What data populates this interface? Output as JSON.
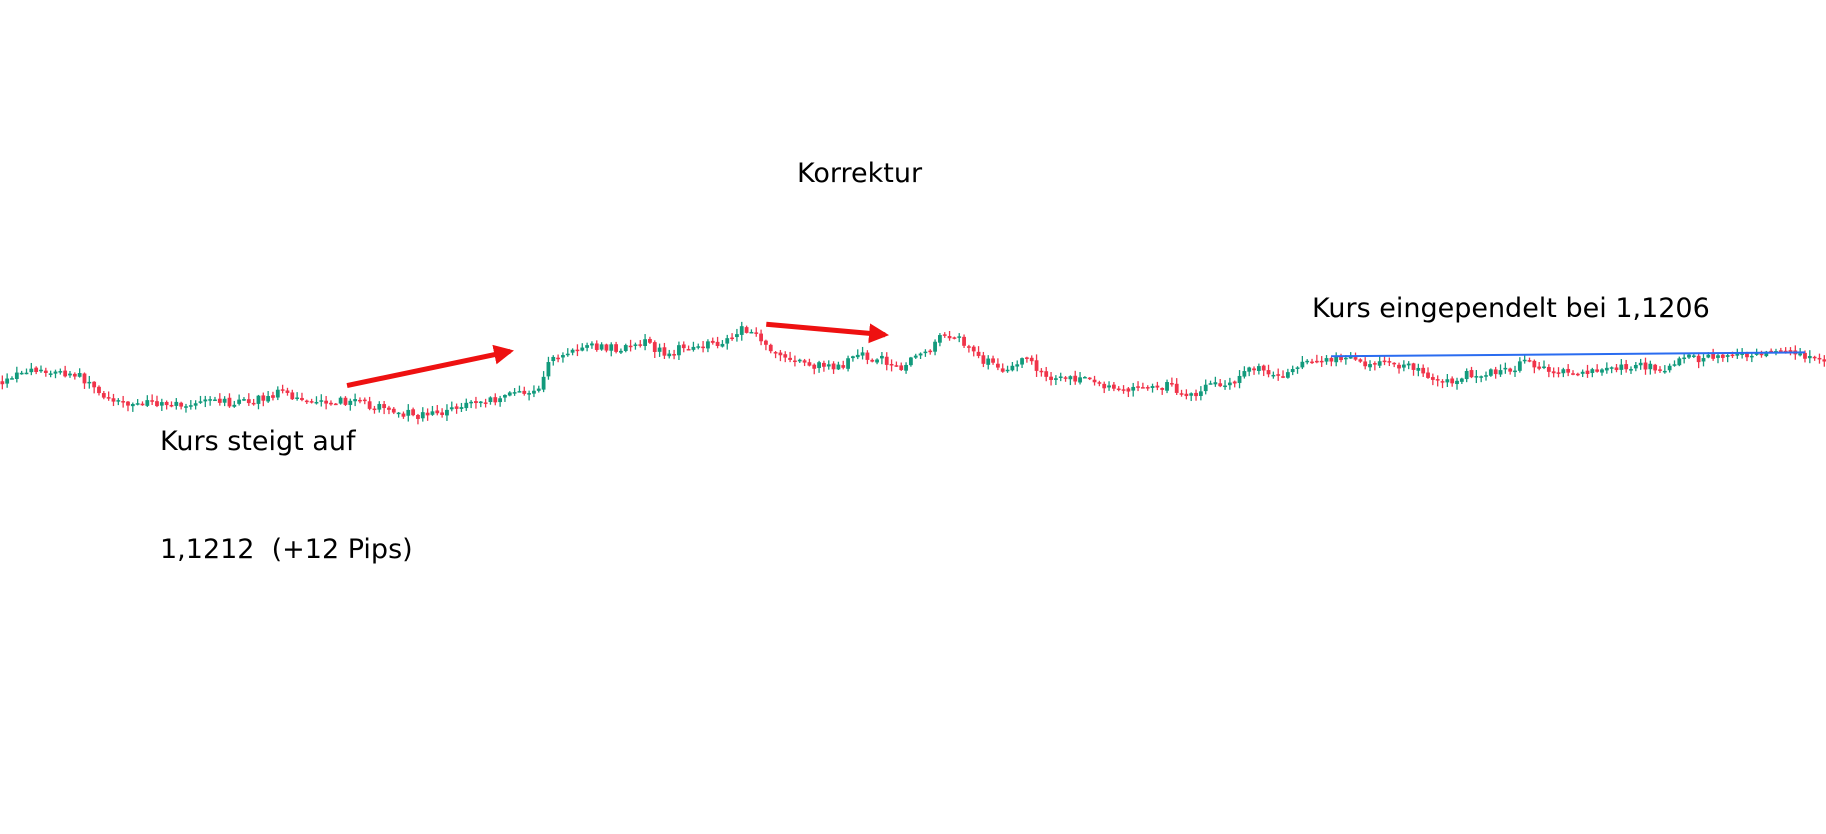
{
  "chart_data": {
    "type": "candlestick",
    "colors": {
      "up": "#129a7c",
      "down": "#f0344a",
      "arrow": "#ee1111",
      "level_line": "#2a6cf0"
    },
    "annotations": {
      "rise_label": [
        "Kurs steigt auf",
        "1,1212  (+12 Pips)"
      ],
      "correction_label": "Korrektur",
      "settled_label": "Kurs eingependelt bei 1,1206"
    },
    "price_path": [
      [
        0,
        1.1184
      ],
      [
        18,
        1.11945
      ],
      [
        65,
        1.1191
      ],
      [
        100,
        1.11635
      ],
      [
        145,
        1.1165
      ],
      [
        165,
        1.1162
      ],
      [
        175,
        1.1165
      ],
      [
        210,
        1.1165
      ],
      [
        240,
        1.11735
      ],
      [
        262,
        1.1168
      ],
      [
        300,
        1.1166
      ],
      [
        335,
        1.1158
      ],
      [
        360,
        1.11535
      ],
      [
        380,
        1.11555
      ],
      [
        395,
        1.1164
      ],
      [
        420,
        1.11665
      ],
      [
        440,
        1.11745
      ],
      [
        463,
        1.1177
      ],
      [
        472,
        1.1204
      ],
      [
        490,
        1.1212
      ],
      [
        510,
        1.1216
      ],
      [
        535,
        1.1214
      ],
      [
        555,
        1.1219
      ],
      [
        572,
        1.1208
      ],
      [
        590,
        1.1217
      ],
      [
        615,
        1.1219
      ],
      [
        628,
        1.1225
      ],
      [
        638,
        1.1234
      ],
      [
        655,
        1.1222
      ],
      [
        668,
        1.1208
      ],
      [
        693,
        1.11995
      ],
      [
        718,
        1.1196
      ],
      [
        738,
        1.1208
      ],
      [
        755,
        1.12045
      ],
      [
        775,
        1.11975
      ],
      [
        795,
        1.1212
      ],
      [
        813,
        1.1228
      ],
      [
        825,
        1.12225
      ],
      [
        845,
        1.1203
      ],
      [
        862,
        1.11955
      ],
      [
        880,
        1.1204
      ],
      [
        900,
        1.1188
      ],
      [
        925,
        1.11865
      ],
      [
        960,
        1.11775
      ],
      [
        985,
        1.11785
      ],
      [
        1005,
        1.11805
      ],
      [
        1022,
        1.1171
      ],
      [
        1040,
        1.1182
      ],
      [
        1058,
        1.1184
      ],
      [
        1075,
        1.1198
      ],
      [
        1100,
        1.1188
      ],
      [
        1120,
        1.11995
      ],
      [
        1143,
        1.12055
      ],
      [
        1170,
        1.12015
      ],
      [
        1215,
        1.1198
      ],
      [
        1238,
        1.11805
      ],
      [
        1260,
        1.11905
      ],
      [
        1290,
        1.1193
      ],
      [
        1310,
        1.1201
      ],
      [
        1335,
        1.1195
      ],
      [
        1360,
        1.11895
      ],
      [
        1380,
        1.1196
      ],
      [
        1410,
        1.1199
      ],
      [
        1432,
        1.11965
      ],
      [
        1445,
        1.1205
      ],
      [
        1480,
        1.1206
      ],
      [
        1505,
        1.1206
      ],
      [
        1525,
        1.12095
      ],
      [
        1545,
        1.12075
      ],
      [
        1568,
        1.1201
      ]
    ],
    "level_line": {
      "x": [
        1143,
        1550
      ],
      "y": [
        1.1207,
        1.12105
      ]
    },
    "rise_arrow": {
      "x": [
        298,
        438
      ],
      "y": [
        1.11805,
        1.12115
      ]
    },
    "correction_arrow": {
      "x": [
        658,
        760
      ],
      "y": [
        1.1236,
        1.12265
      ]
    }
  }
}
